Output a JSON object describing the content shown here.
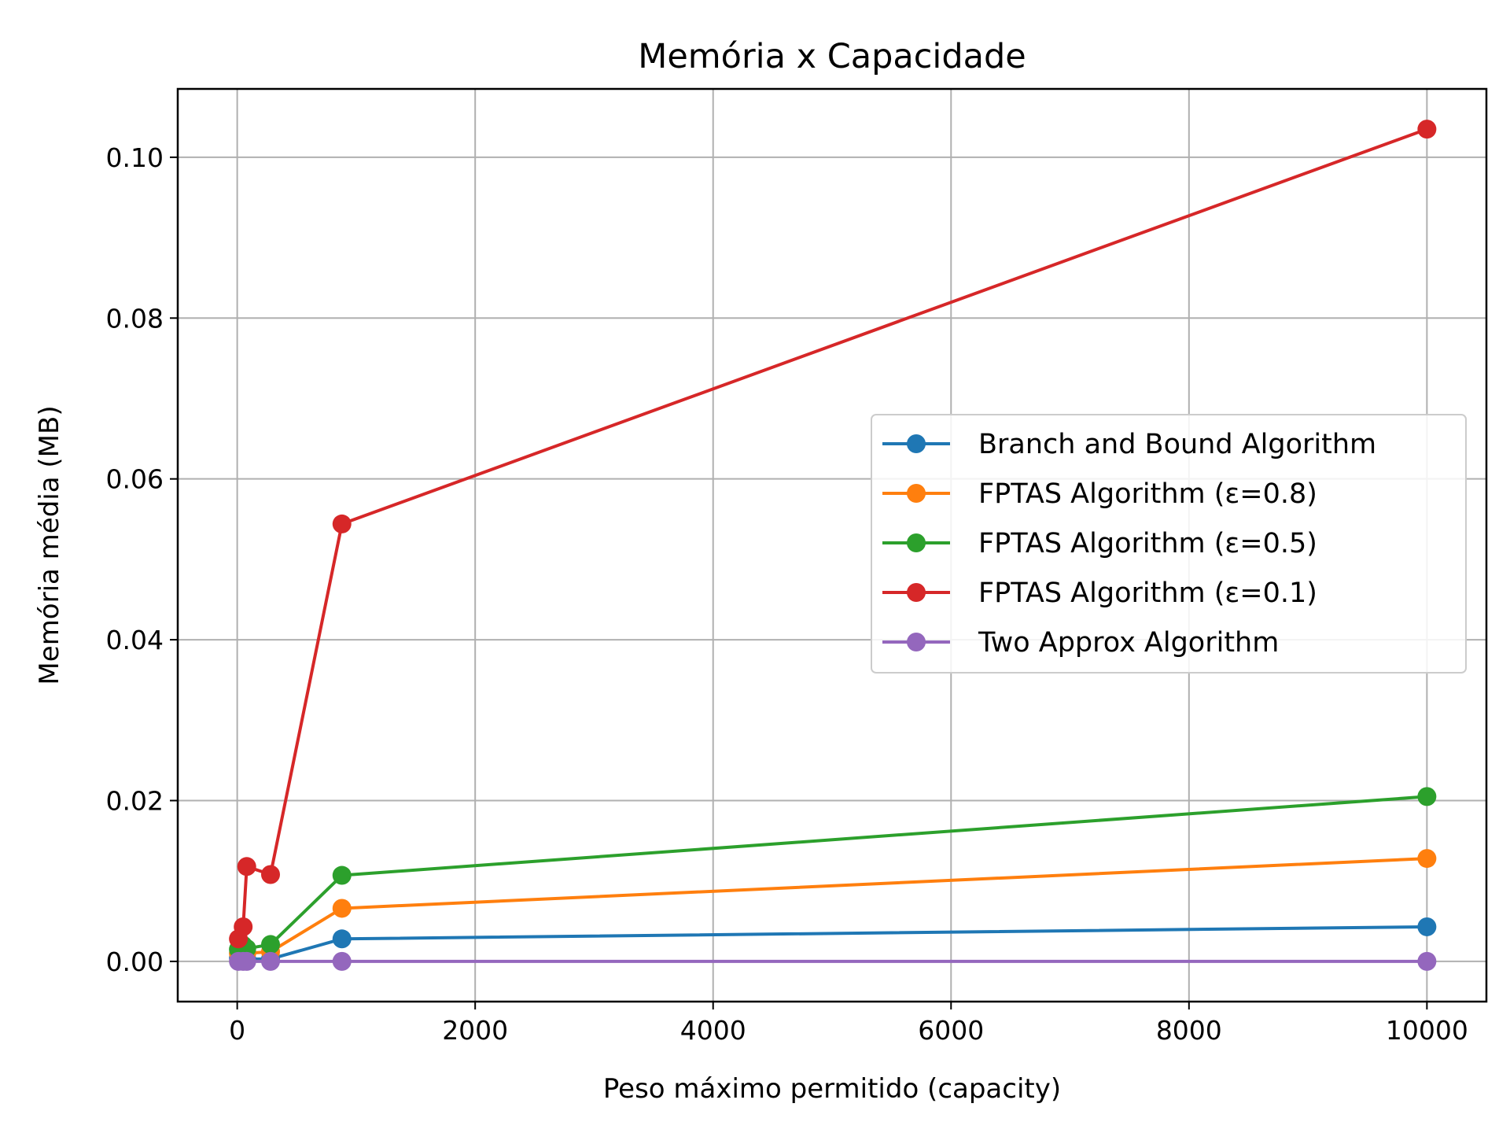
{
  "chart_data": {
    "type": "line",
    "title": "Memória x Capacidade",
    "xlabel": "Peso máximo permitido (capacity)",
    "ylabel": "Memória média (MB)",
    "xlim": [
      -500,
      10500
    ],
    "ylim": [
      -0.005,
      0.1085
    ],
    "xticks": [
      0,
      2000,
      4000,
      6000,
      8000,
      10000
    ],
    "xtick_labels": [
      "0",
      "2000",
      "4000",
      "6000",
      "8000",
      "10000"
    ],
    "yticks": [
      0.0,
      0.02,
      0.04,
      0.06,
      0.08,
      0.1
    ],
    "ytick_labels": [
      "0.00",
      "0.02",
      "0.04",
      "0.06",
      "0.08",
      "0.10"
    ],
    "grid": true,
    "legend_position": "center-right",
    "x": [
      10,
      50,
      80,
      280,
      880,
      10000
    ],
    "series": [
      {
        "name": "Branch and Bound Algorithm",
        "color": "#1f77b4",
        "values": [
          0.0004,
          0.0003,
          0.0003,
          0.0003,
          0.0028,
          0.0043
        ]
      },
      {
        "name": "FPTAS Algorithm (ε=0.8)",
        "color": "#ff7f0e",
        "values": [
          0.001,
          0.0012,
          0.001,
          0.0012,
          0.0066,
          0.0128
        ]
      },
      {
        "name": "FPTAS Algorithm (ε=0.5)",
        "color": "#2ca02c",
        "values": [
          0.0015,
          0.002,
          0.0016,
          0.0021,
          0.0107,
          0.0205
        ]
      },
      {
        "name": "FPTAS Algorithm (ε=0.1)",
        "color": "#d62728",
        "values": [
          0.0028,
          0.0043,
          0.0118,
          0.0108,
          0.0544,
          0.1035
        ]
      },
      {
        "name": "Two Approx Algorithm",
        "color": "#9467bd",
        "values": [
          0.0,
          0.0,
          0.0,
          0.0,
          0.0,
          0.0
        ]
      }
    ]
  }
}
